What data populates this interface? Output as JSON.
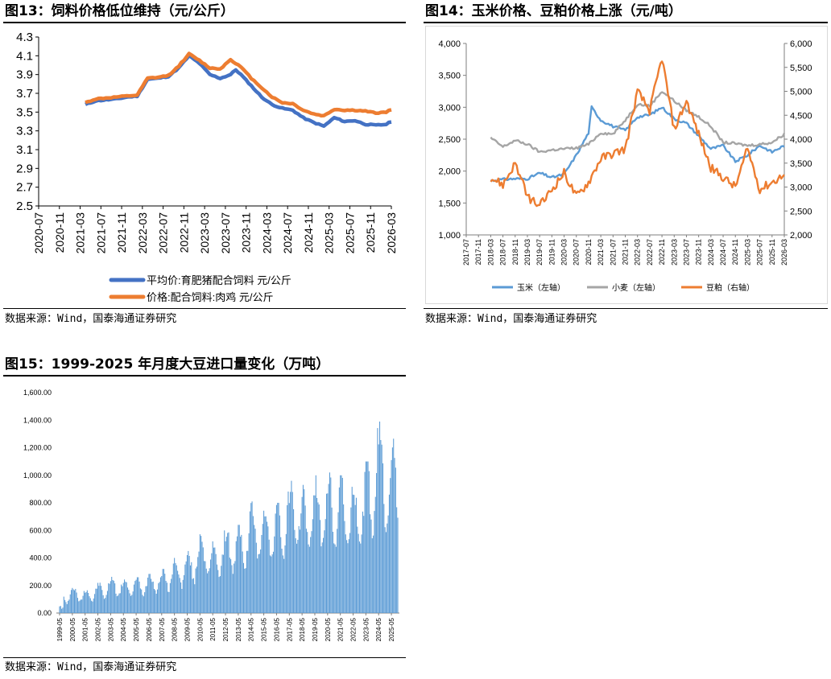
{
  "figures": [
    {
      "title": "图13：饲料价格低位维持（元/公斤）",
      "source": "数据来源：Wind，国泰海通证券研究"
    },
    {
      "title": "图14：玉米价格、豆粕价格上涨（元/吨）",
      "source": "数据来源：Wind，国泰海通证券研究"
    },
    {
      "title": "图15：1999-2025 年月度大豆进口量变化（万吨）",
      "source": "数据来源：Wind，国泰海通证券研究"
    }
  ],
  "chart_data": [
    {
      "type": "line",
      "ylim": [
        2.5,
        4.3
      ],
      "yticks": [
        "4.3",
        "4.1",
        "3.9",
        "3.7",
        "3.5",
        "3.3",
        "3.1",
        "2.9",
        "2.7",
        "2.5"
      ],
      "xticks": [
        "2020-07",
        "2020-11",
        "2021-03",
        "2021-07",
        "2021-11",
        "2022-03",
        "2022-07",
        "2022-11",
        "2023-03",
        "2023-07",
        "2023-11",
        "2024-03",
        "2024-07",
        "2024-11",
        "2025-03",
        "2025-07",
        "2025-11",
        "2026-03"
      ],
      "legend_position": "bottom",
      "grid": false,
      "series": [
        {
          "name": "平均价:育肥猪配合饲料 元/公斤",
          "color": "#4472c4",
          "points": [
            [
              "2021-04",
              3.58
            ],
            [
              "2021-06",
              3.62
            ],
            [
              "2021-08",
              3.63
            ],
            [
              "2021-10",
              3.64
            ],
            [
              "2021-12",
              3.66
            ],
            [
              "2022-02",
              3.67
            ],
            [
              "2022-04",
              3.85
            ],
            [
              "2022-06",
              3.86
            ],
            [
              "2022-08",
              3.88
            ],
            [
              "2022-10",
              3.97
            ],
            [
              "2022-12",
              4.1
            ],
            [
              "2023-02",
              4.02
            ],
            [
              "2023-04",
              3.9
            ],
            [
              "2023-06",
              3.86
            ],
            [
              "2023-08",
              3.9
            ],
            [
              "2023-09",
              3.95
            ],
            [
              "2023-10",
              3.9
            ],
            [
              "2023-12",
              3.78
            ],
            [
              "2024-02",
              3.66
            ],
            [
              "2024-04",
              3.58
            ],
            [
              "2024-06",
              3.54
            ],
            [
              "2024-08",
              3.52
            ],
            [
              "2024-10",
              3.44
            ],
            [
              "2024-12",
              3.39
            ],
            [
              "2025-02",
              3.35
            ],
            [
              "2025-04",
              3.44
            ],
            [
              "2025-06",
              3.4
            ],
            [
              "2025-08",
              3.41
            ],
            [
              "2025-10",
              3.37
            ],
            [
              "2025-12",
              3.36
            ],
            [
              "2026-02",
              3.37
            ],
            [
              "2026-03",
              3.4
            ]
          ]
        },
        {
          "name": "价格:配合饲料:肉鸡 元/公斤",
          "color": "#ed7d31",
          "points": [
            [
              "2021-04",
              3.6
            ],
            [
              "2021-06",
              3.64
            ],
            [
              "2021-08",
              3.65
            ],
            [
              "2021-10",
              3.66
            ],
            [
              "2021-12",
              3.67
            ],
            [
              "2022-02",
              3.68
            ],
            [
              "2022-04",
              3.86
            ],
            [
              "2022-06",
              3.87
            ],
            [
              "2022-08",
              3.89
            ],
            [
              "2022-10",
              3.99
            ],
            [
              "2022-12",
              4.12
            ],
            [
              "2023-02",
              4.05
            ],
            [
              "2023-04",
              3.97
            ],
            [
              "2023-06",
              3.96
            ],
            [
              "2023-08",
              4.06
            ],
            [
              "2023-10",
              3.98
            ],
            [
              "2023-12",
              3.86
            ],
            [
              "2024-02",
              3.76
            ],
            [
              "2024-04",
              3.66
            ],
            [
              "2024-06",
              3.6
            ],
            [
              "2024-08",
              3.59
            ],
            [
              "2024-10",
              3.52
            ],
            [
              "2024-12",
              3.48
            ],
            [
              "2025-02",
              3.46
            ],
            [
              "2025-04",
              3.53
            ],
            [
              "2025-06",
              3.52
            ],
            [
              "2025-08",
              3.52
            ],
            [
              "2025-10",
              3.51
            ],
            [
              "2025-12",
              3.49
            ],
            [
              "2026-02",
              3.5
            ],
            [
              "2026-03",
              3.53
            ]
          ]
        }
      ]
    },
    {
      "type": "line",
      "y_left": {
        "ticks": [
          "4,000",
          "3,500",
          "3,000",
          "2,500",
          "2,000",
          "1,500",
          "1,000"
        ],
        "ylim": [
          1000,
          4000
        ]
      },
      "y_right": {
        "ticks": [
          "6,000",
          "5,500",
          "5,000",
          "4,500",
          "4,000",
          "3,500",
          "3,000",
          "2,500",
          "2,000"
        ],
        "ylim": [
          2000,
          6000
        ]
      },
      "xticks": [
        "2017-07",
        "2017-11",
        "2018-03",
        "2018-07",
        "2018-11",
        "2019-03",
        "2019-07",
        "2019-11",
        "2020-03",
        "2020-07",
        "2020-11",
        "2021-03",
        "2021-07",
        "2021-11",
        "2022-03",
        "2022-07",
        "2022-11",
        "2023-03",
        "2023-07",
        "2023-11",
        "2024-03",
        "2024-07",
        "2024-11",
        "2025-03",
        "2025-07",
        "2025-11",
        "2026-03"
      ],
      "legend_position": "bottom",
      "grid": false,
      "series": [
        {
          "name": "玉米（左轴）",
          "axis": "left",
          "color": "#5b9bd5",
          "points": [
            [
              "2018-03",
              1850
            ],
            [
              "2018-07",
              1870
            ],
            [
              "2018-11",
              1880
            ],
            [
              "2019-03",
              1880
            ],
            [
              "2019-07",
              1970
            ],
            [
              "2019-11",
              1900
            ],
            [
              "2020-03",
              1950
            ],
            [
              "2020-07",
              2250
            ],
            [
              "2020-11",
              2600
            ],
            [
              "2020-12",
              3000
            ],
            [
              "2021-03",
              2800
            ],
            [
              "2021-07",
              2700
            ],
            [
              "2021-11",
              2640
            ],
            [
              "2022-03",
              2850
            ],
            [
              "2022-07",
              2880
            ],
            [
              "2022-11",
              3000
            ],
            [
              "2023-03",
              2820
            ],
            [
              "2023-07",
              2750
            ],
            [
              "2023-11",
              2550
            ],
            [
              "2024-03",
              2350
            ],
            [
              "2024-07",
              2400
            ],
            [
              "2024-11",
              2150
            ],
            [
              "2025-03",
              2250
            ],
            [
              "2025-07",
              2400
            ],
            [
              "2025-11",
              2300
            ],
            [
              "2026-03",
              2400
            ]
          ]
        },
        {
          "name": "小麦（左轴）",
          "axis": "left",
          "color": "#a5a5a5",
          "points": [
            [
              "2018-03",
              2520
            ],
            [
              "2018-07",
              2380
            ],
            [
              "2018-11",
              2480
            ],
            [
              "2019-03",
              2420
            ],
            [
              "2019-07",
              2300
            ],
            [
              "2019-11",
              2330
            ],
            [
              "2020-03",
              2350
            ],
            [
              "2020-07",
              2360
            ],
            [
              "2020-11",
              2420
            ],
            [
              "2021-03",
              2600
            ],
            [
              "2021-07",
              2580
            ],
            [
              "2021-11",
              2800
            ],
            [
              "2022-03",
              3050
            ],
            [
              "2022-07",
              3020
            ],
            [
              "2022-11",
              3250
            ],
            [
              "2023-03",
              3100
            ],
            [
              "2023-07",
              2950
            ],
            [
              "2023-11",
              2850
            ],
            [
              "2024-03",
              2700
            ],
            [
              "2024-07",
              2450
            ],
            [
              "2024-11",
              2430
            ],
            [
              "2025-03",
              2400
            ],
            [
              "2025-07",
              2420
            ],
            [
              "2025-11",
              2450
            ],
            [
              "2026-03",
              2580
            ]
          ]
        },
        {
          "name": "豆粕（右轴）",
          "axis": "right",
          "color": "#ed7d31",
          "points": [
            [
              "2018-03",
              3200
            ],
            [
              "2018-07",
              3050
            ],
            [
              "2018-11",
              3500
            ],
            [
              "2019-03",
              2800
            ],
            [
              "2019-07",
              2600
            ],
            [
              "2019-11",
              2950
            ],
            [
              "2020-03",
              3300
            ],
            [
              "2020-07",
              2800
            ],
            [
              "2020-11",
              3100
            ],
            [
              "2021-03",
              3600
            ],
            [
              "2021-07",
              3700
            ],
            [
              "2021-11",
              3800
            ],
            [
              "2022-03",
              5000
            ],
            [
              "2022-07",
              4600
            ],
            [
              "2022-11",
              5700
            ],
            [
              "2023-03",
              4200
            ],
            [
              "2023-07",
              4800
            ],
            [
              "2023-11",
              4100
            ],
            [
              "2024-03",
              3400
            ],
            [
              "2024-07",
              3200
            ],
            [
              "2024-11",
              3000
            ],
            [
              "2025-03",
              3800
            ],
            [
              "2025-07",
              2950
            ],
            [
              "2025-11",
              3100
            ],
            [
              "2026-03",
              3250
            ]
          ]
        }
      ]
    },
    {
      "type": "bar",
      "ylim": [
        0,
        1600
      ],
      "yticks": [
        "1,600.00",
        "1,400.00",
        "1,200.00",
        "1,000.00",
        "800.00",
        "600.00",
        "400.00",
        "200.00",
        "0.00"
      ],
      "xticks": [
        "1999-05",
        "2000-05",
        "2001-05",
        "2002-05",
        "2003-05",
        "2004-05",
        "2005-05",
        "2006-05",
        "2007-05",
        "2008-05",
        "2009-05",
        "2010-05",
        "2011-05",
        "2012-05",
        "2013-05",
        "2014-05",
        "2015-05",
        "2016-05",
        "2017-05",
        "2018-05",
        "2019-05",
        "2020-05",
        "2021-05",
        "2022-05",
        "2023-05",
        "2024-05",
        "2025-05"
      ],
      "bar_color": "#5b9bd5",
      "annual_low": [
        60,
        70,
        80,
        95,
        110,
        135,
        145,
        165,
        175,
        190,
        220,
        275,
        280,
        320,
        330,
        390,
        420,
        430,
        470,
        460,
        480,
        500,
        510,
        500,
        520,
        540,
        560
      ],
      "annual_high": [
        150,
        190,
        180,
        220,
        270,
        250,
        260,
        300,
        320,
        400,
        450,
        590,
        520,
        620,
        640,
        810,
        810,
        800,
        960,
        930,
        1000,
        1020,
        1000,
        950,
        1100,
        1390,
        1290
      ],
      "grid": false
    }
  ]
}
